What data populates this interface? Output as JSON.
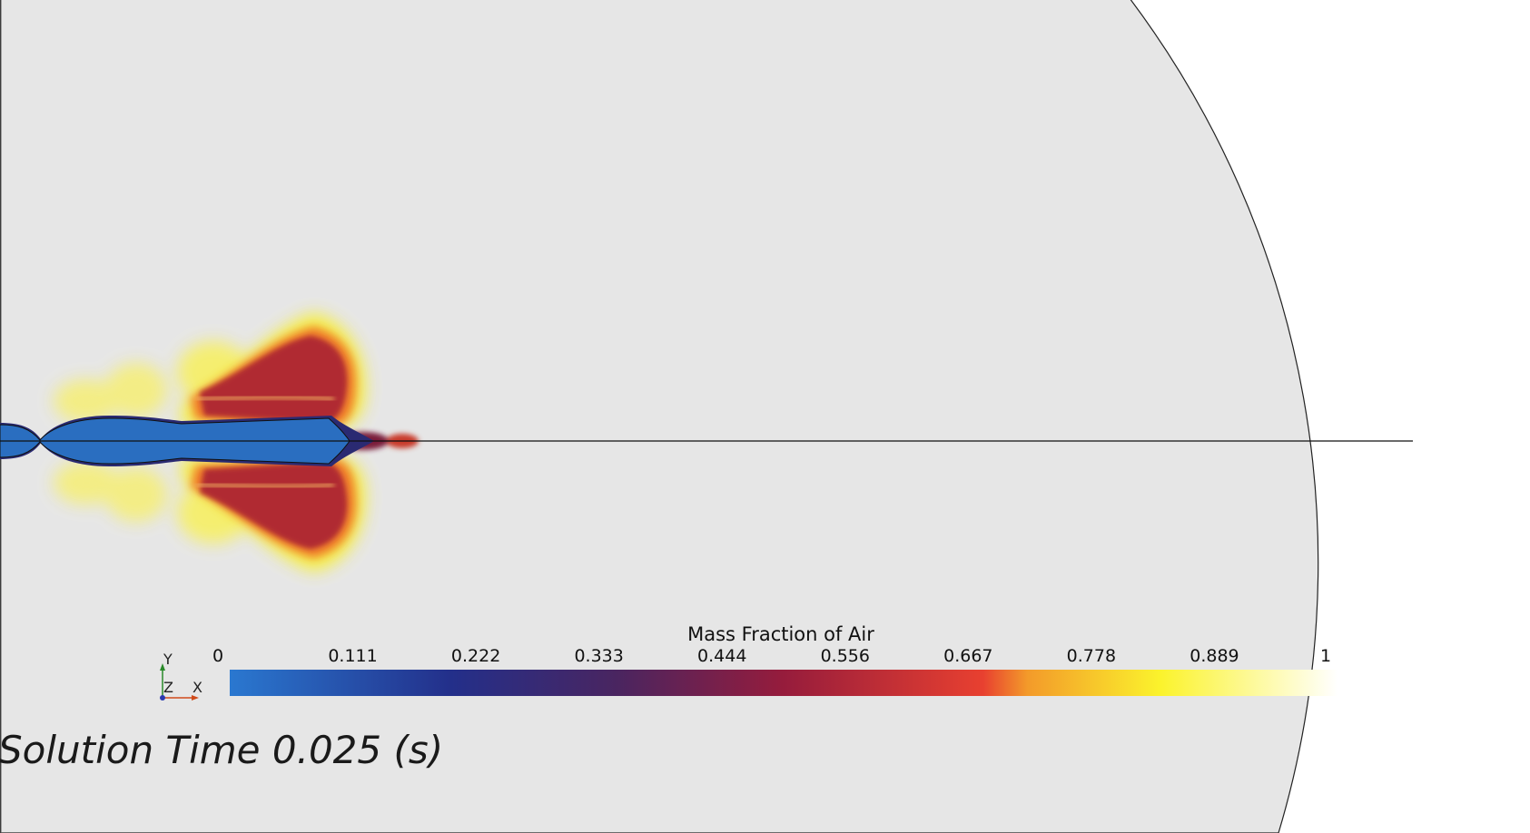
{
  "legend": {
    "title": "Mass Fraction of Air",
    "ticks": [
      "0",
      "0.111",
      "0.222",
      "0.333",
      "0.444",
      "0.556",
      "0.667",
      "0.778",
      "0.889",
      "1"
    ],
    "colors": {
      "c0": "#2a78d0",
      "c1": "#232f8a",
      "c2": "#4a2560",
      "c3": "#961c3c",
      "c4": "#e84030",
      "c5": "#f39a2a",
      "c6": "#fbf32c",
      "c7": "#ffffff"
    }
  },
  "axes": {
    "y": "Y",
    "z": "Z",
    "x": "X"
  },
  "solution_time": "Solution Time 0.025 (s)",
  "colors": {
    "background": "#e6e6e6",
    "outline": "#222222",
    "jet_core": "#2a6ec0",
    "plume": "#b02a2f",
    "halo": "#f7ef3a"
  }
}
